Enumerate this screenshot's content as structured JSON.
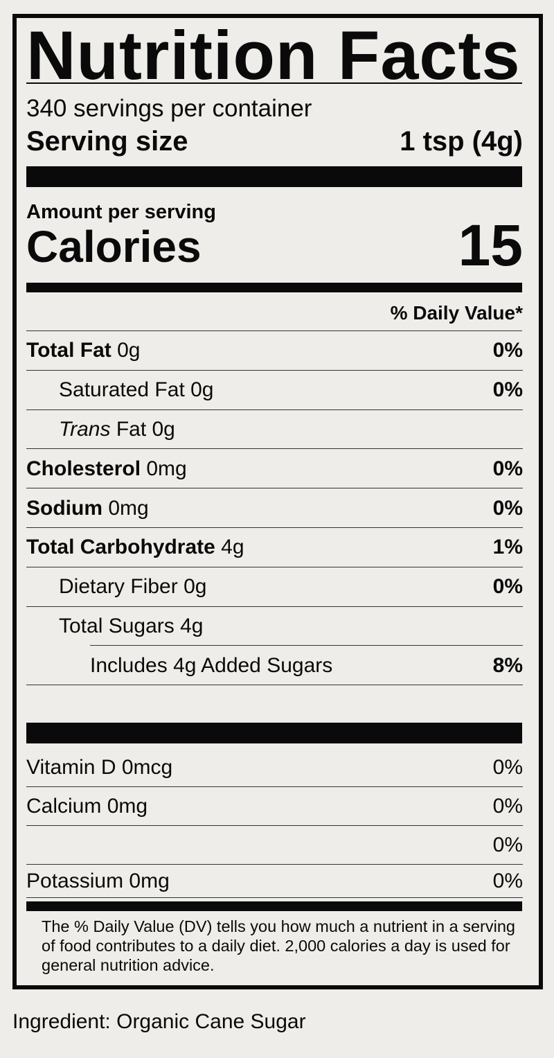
{
  "title": "Nutrition Facts",
  "servings_per_container": "340 servings per container",
  "serving_size": {
    "label": "Serving size",
    "value": "1 tsp (4g)"
  },
  "amount_per_serving": "Amount per serving",
  "calories": {
    "label": "Calories",
    "value": "15"
  },
  "daily_value_header": "% Daily Value*",
  "nutrients": [
    {
      "name": "Total Fat",
      "amount": "0g",
      "dv": "0%"
    },
    {
      "name": "Saturated Fat",
      "amount": "0g",
      "dv": "0%"
    },
    {
      "name": "Trans",
      "suffix": "Fat 0g",
      "dv": ""
    },
    {
      "name": "Cholesterol",
      "amount": "0mg",
      "dv": "0%"
    },
    {
      "name": "Sodium",
      "amount": "0mg",
      "dv": "0%"
    },
    {
      "name": "Total Carbohydrate",
      "amount": "4g",
      "dv": "1%"
    },
    {
      "name": "Dietary Fiber",
      "amount": "0g",
      "dv": "0%"
    },
    {
      "name": "Total Sugars",
      "amount": "4g",
      "dv": ""
    },
    {
      "name": "Includes 4g Added Sugars",
      "amount": "",
      "dv": "8%"
    }
  ],
  "vitamins": [
    {
      "label": "Vitamin D 0mcg",
      "dv": "0%"
    },
    {
      "label": "Calcium 0mg",
      "dv": "0%"
    },
    {
      "label": "",
      "dv": "0%"
    },
    {
      "label": "Potassium 0mg",
      "dv": "0%"
    }
  ],
  "footnote": "The % Daily Value (DV) tells you how much a nutrient in a serving of food contributes to a daily diet. 2,000 calories a day is used for general nutrition advice.",
  "ingredients": "Ingredient: Organic Cane Sugar"
}
